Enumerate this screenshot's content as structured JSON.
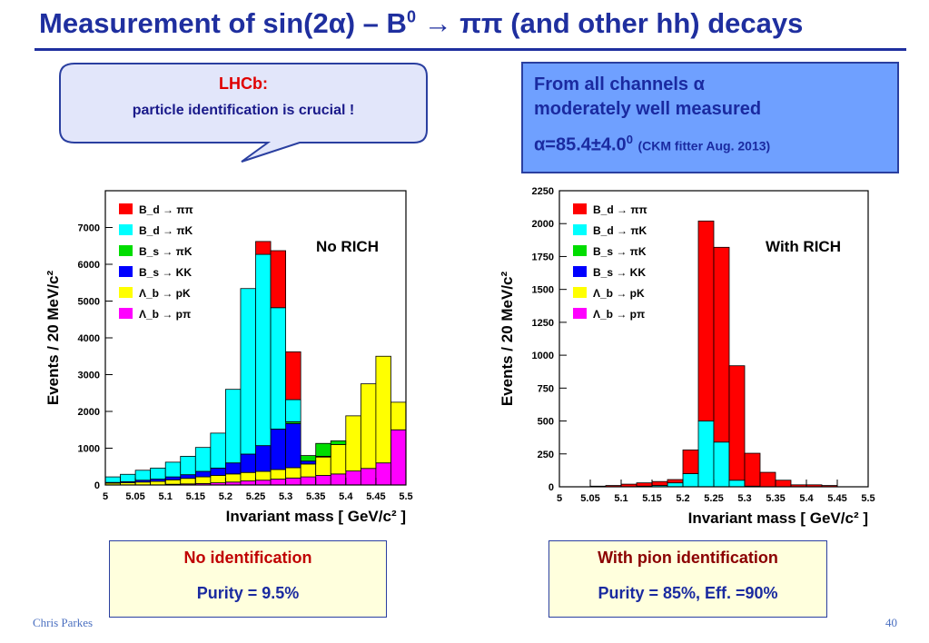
{
  "slide": {
    "title_pre": "Measurement of sin(2α) – B",
    "title_sup": "0",
    "title_post": " → ππ (and other hh) decays",
    "callout": {
      "heading": "LHCb:",
      "body": "particle identification is crucial !"
    },
    "alpha_box": {
      "line1": "From all channels α",
      "line2": "moderately well measured",
      "value_pre": "α=85.4±4.0",
      "value_sup": "0",
      "note": "(CKM fitter  Aug. 2013)"
    },
    "left_box": {
      "heading": "No identification",
      "sub": "Purity = 9.5%"
    },
    "right_box": {
      "heading": "With pion identification",
      "sub": "Purity = 85%, Eff. =90%"
    },
    "footer_author": "Chris Parkes",
    "page_number": "40"
  },
  "colors": {
    "title": "#1f2f9f",
    "Bd_pipi": "#ff0000",
    "Bd_piK": "#00ffff",
    "Bs_piK": "#00dd00",
    "Bs_KK": "#0000ff",
    "Lb_pK": "#ffff00",
    "Lb_ppi": "#ff00ff"
  },
  "chart_data": [
    {
      "type": "bar",
      "stacked": true,
      "annotation": "No RICH",
      "ylabel": "Events  /  20 MeV/c²",
      "xlabel": "Invariant mass  [ GeV/c² ]",
      "x_bin_edges": [
        5.0,
        5.025,
        5.05,
        5.075,
        5.1,
        5.125,
        5.15,
        5.175,
        5.2,
        5.225,
        5.25,
        5.275,
        5.3,
        5.325,
        5.35,
        5.375,
        5.4,
        5.425,
        5.45,
        5.475,
        5.5
      ],
      "xlim": [
        5.0,
        5.5
      ],
      "ylim": [
        0,
        8000
      ],
      "x_ticks": [
        "5",
        "5.05",
        "5.1",
        "5.15",
        "5.2",
        "5.25",
        "5.3",
        "5.35",
        "5.4",
        "5.45",
        "5.5"
      ],
      "y_ticks": [
        "0",
        "1000",
        "2000",
        "3000",
        "4000",
        "5000",
        "6000",
        "7000"
      ],
      "legend": [
        "B_d → ππ",
        "B_d → πK",
        "B_s → πK",
        "B_s → KK",
        "Λ_b → pK",
        "Λ_b → pπ"
      ],
      "series": [
        {
          "name": "Λ_b → pπ",
          "color": "#ff00ff",
          "values": [
            0,
            0,
            0,
            0,
            20,
            30,
            40,
            60,
            80,
            110,
            130,
            160,
            190,
            220,
            260,
            300,
            380,
            450,
            600,
            1500
          ]
        },
        {
          "name": "Λ_b → pK",
          "color": "#ffff00",
          "values": [
            50,
            60,
            80,
            100,
            120,
            150,
            180,
            200,
            220,
            230,
            240,
            260,
            280,
            350,
            500,
            800,
            1500,
            2300,
            2900,
            750
          ]
        },
        {
          "name": "B_s → KK",
          "color": "#0000ff",
          "values": [
            20,
            30,
            50,
            60,
            80,
            100,
            150,
            200,
            300,
            500,
            700,
            1100,
            1200,
            80,
            20,
            0,
            0,
            0,
            0,
            0
          ]
        },
        {
          "name": "B_s → πK",
          "color": "#00dd00",
          "values": [
            0,
            0,
            0,
            0,
            0,
            0,
            0,
            0,
            0,
            0,
            0,
            0,
            50,
            150,
            350,
            100,
            0,
            0,
            0,
            0
          ]
        },
        {
          "name": "B_d → πK",
          "color": "#00ffff",
          "values": [
            150,
            200,
            270,
            300,
            400,
            500,
            650,
            950,
            2000,
            4500,
            5200,
            3300,
            600,
            0,
            0,
            0,
            0,
            0,
            0,
            0
          ]
        },
        {
          "name": "B_d → ππ",
          "color": "#ff0000",
          "values": [
            0,
            0,
            0,
            0,
            0,
            0,
            0,
            0,
            0,
            0,
            350,
            1550,
            1300,
            0,
            0,
            0,
            0,
            0,
            0,
            0
          ]
        }
      ]
    },
    {
      "type": "bar",
      "stacked": true,
      "annotation": "With RICH",
      "ylabel": "Events  /  20 MeV/c²",
      "xlabel": "Invariant mass  [ GeV/c² ]",
      "x_bin_edges": [
        5.0,
        5.025,
        5.05,
        5.075,
        5.1,
        5.125,
        5.15,
        5.175,
        5.2,
        5.225,
        5.25,
        5.275,
        5.3,
        5.325,
        5.35,
        5.375,
        5.4,
        5.425,
        5.45,
        5.475,
        5.5
      ],
      "xlim": [
        5.0,
        5.5
      ],
      "ylim": [
        0,
        2250
      ],
      "x_ticks": [
        "5",
        "5.05",
        "5.1",
        "5.15",
        "5.2",
        "5.25",
        "5.3",
        "5.35",
        "5.4",
        "5.45",
        "5.5"
      ],
      "y_ticks": [
        "0",
        "250",
        "500",
        "750",
        "1000",
        "1250",
        "1500",
        "1750",
        "2000",
        "2250"
      ],
      "legend": [
        "B_d → ππ",
        "B_d → πK",
        "B_s → πK",
        "B_s → KK",
        "Λ_b → pK",
        "Λ_b → pπ"
      ],
      "series": [
        {
          "name": "Λ_b → pπ",
          "color": "#ff00ff",
          "values": [
            0,
            0,
            0,
            0,
            0,
            0,
            0,
            0,
            0,
            0,
            0,
            0,
            0,
            0,
            0,
            0,
            0,
            0,
            0,
            0
          ]
        },
        {
          "name": "Λ_b → pK",
          "color": "#ffff00",
          "values": [
            0,
            0,
            0,
            0,
            0,
            0,
            0,
            0,
            0,
            0,
            0,
            0,
            0,
            0,
            0,
            0,
            0,
            0,
            0,
            0
          ]
        },
        {
          "name": "B_s → KK",
          "color": "#0000ff",
          "values": [
            0,
            0,
            0,
            0,
            0,
            0,
            0,
            0,
            0,
            0,
            0,
            0,
            0,
            0,
            0,
            0,
            0,
            0,
            0,
            0
          ]
        },
        {
          "name": "B_s → πK",
          "color": "#00dd00",
          "values": [
            0,
            0,
            0,
            0,
            0,
            0,
            0,
            0,
            0,
            0,
            0,
            0,
            0,
            0,
            0,
            0,
            0,
            0,
            0,
            0
          ]
        },
        {
          "name": "B_d → πK",
          "color": "#00ffff",
          "values": [
            0,
            0,
            0,
            0,
            0,
            5,
            10,
            30,
            100,
            500,
            340,
            50,
            5,
            0,
            0,
            0,
            0,
            0,
            0,
            0
          ]
        },
        {
          "name": "B_d → ππ",
          "color": "#ff0000",
          "values": [
            0,
            0,
            5,
            10,
            20,
            25,
            30,
            25,
            180,
            1520,
            1480,
            870,
            250,
            110,
            50,
            15,
            15,
            10,
            0,
            0
          ]
        }
      ]
    }
  ]
}
